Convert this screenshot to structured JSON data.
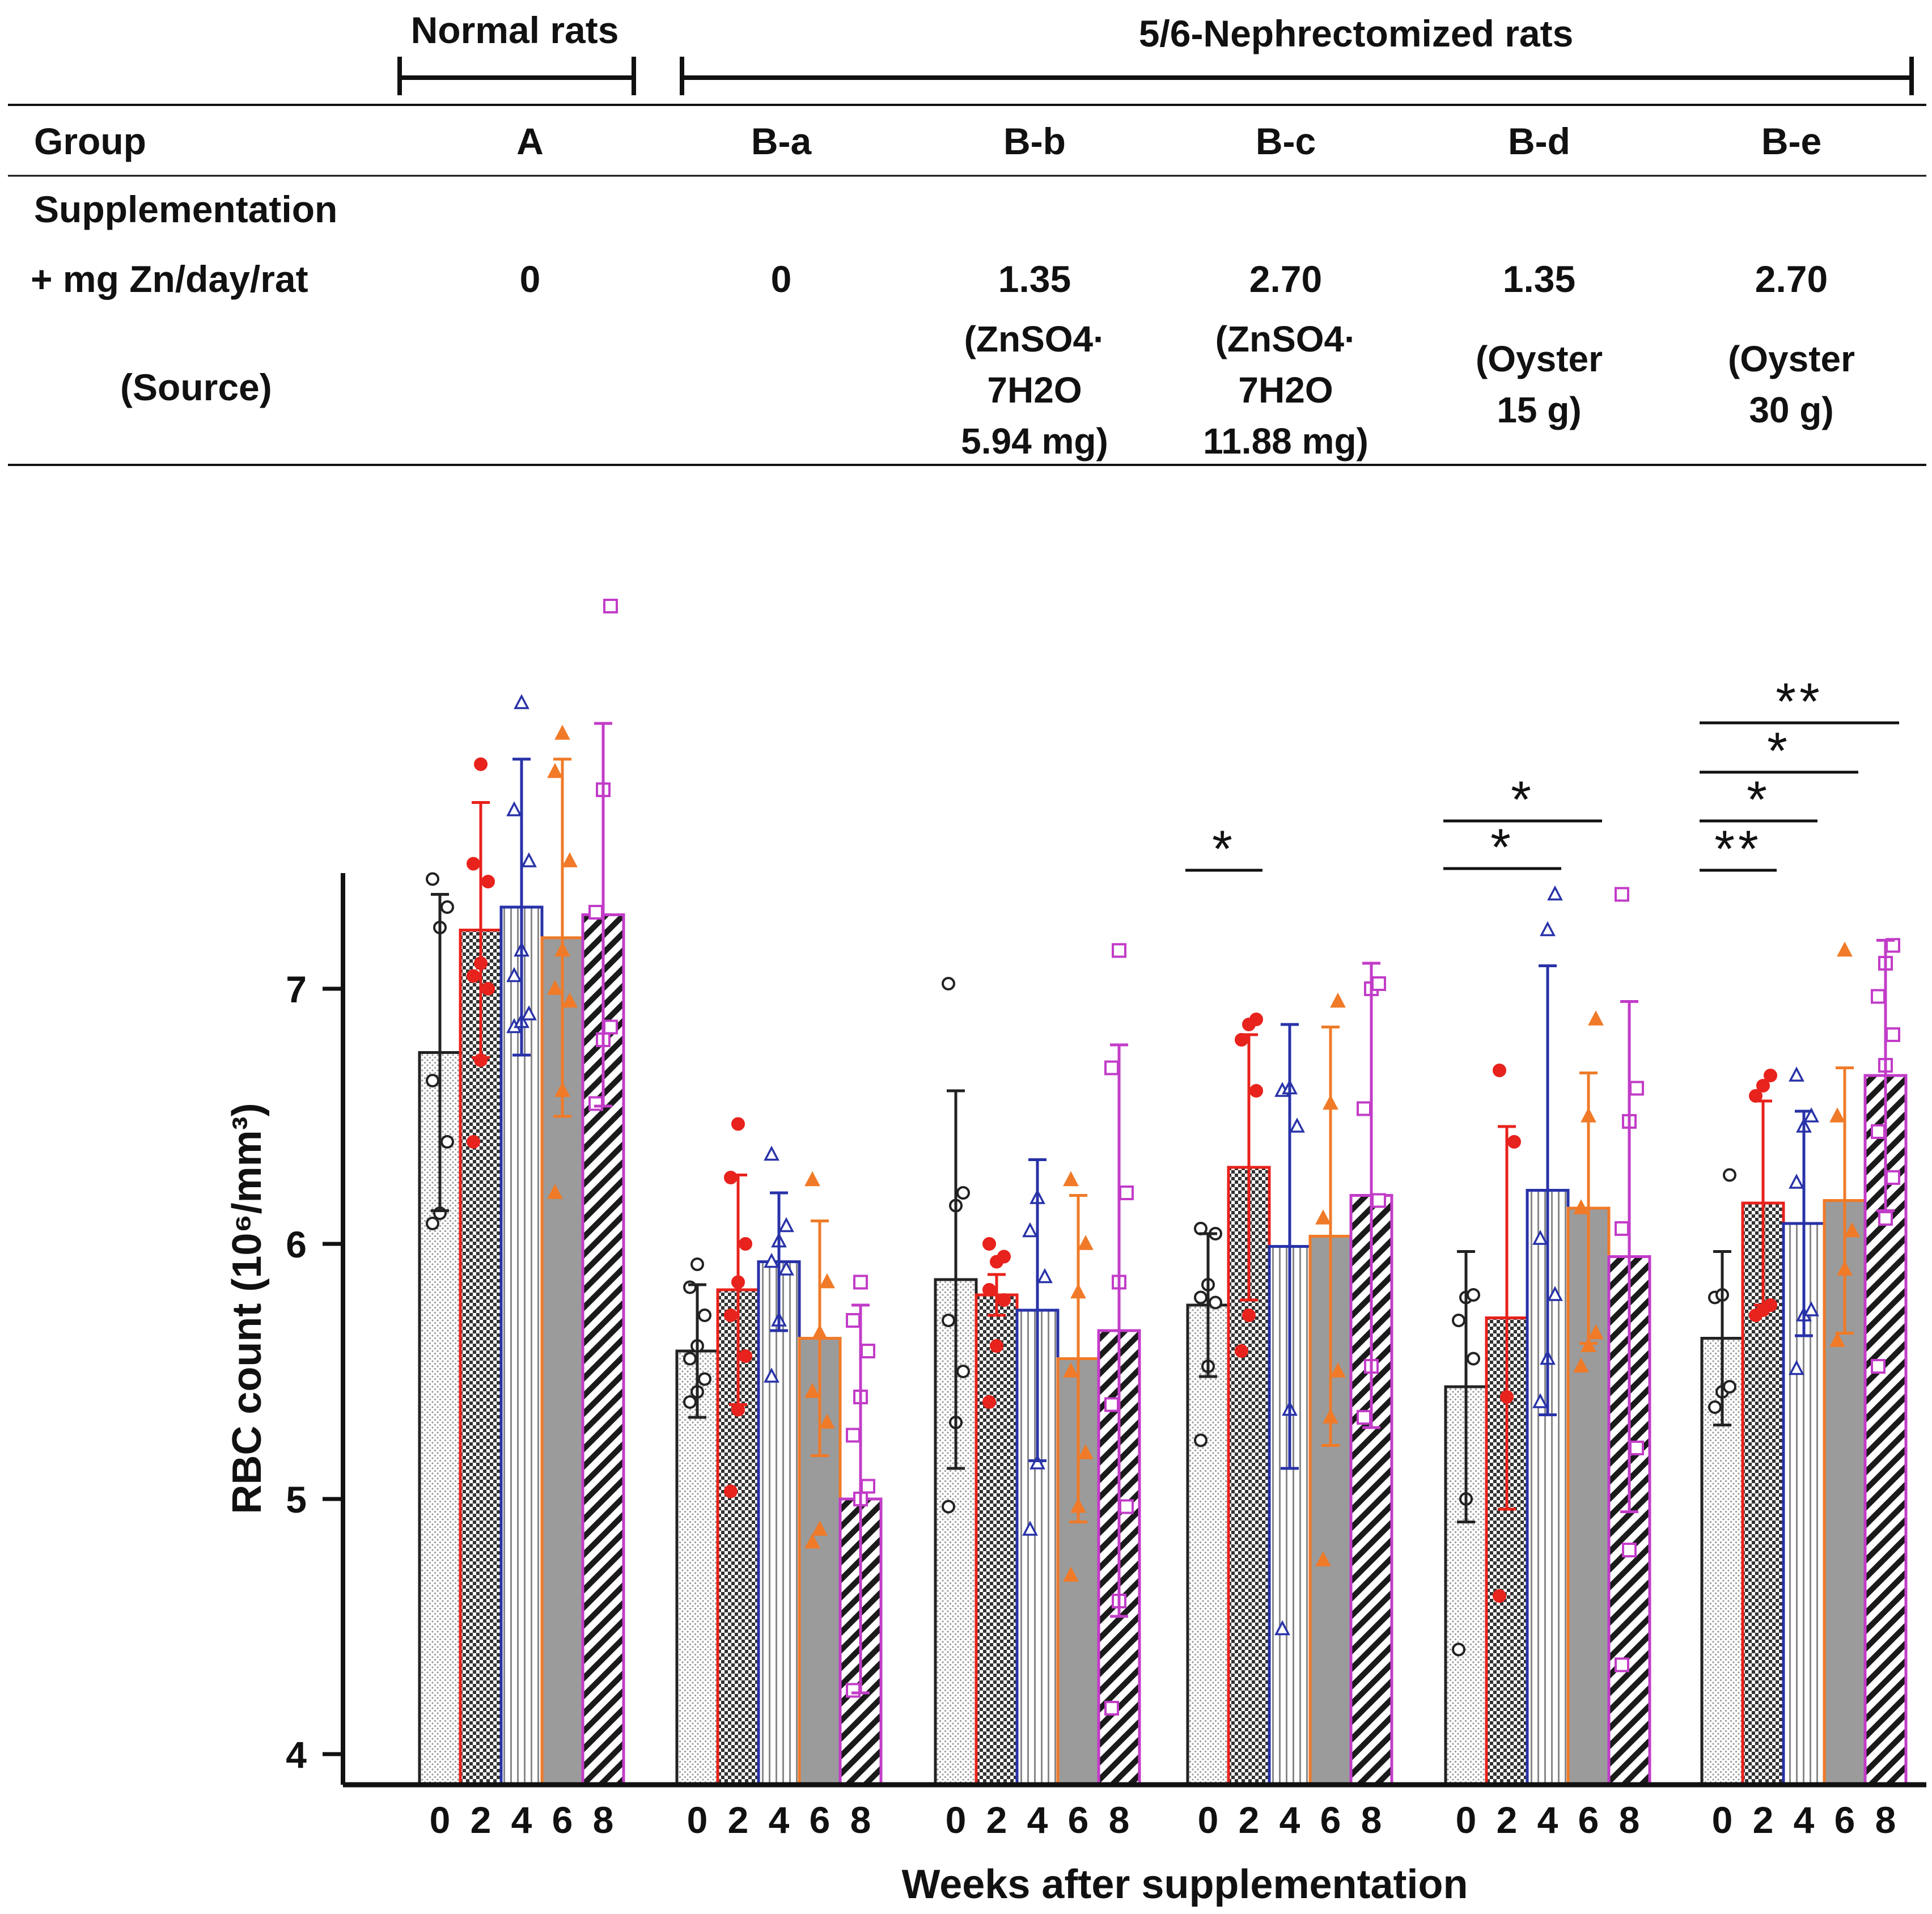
{
  "table": {
    "normal_label": "Normal rats",
    "nephrectomized_label": "5/6-Nephrectomized rats",
    "row_labels": {
      "group": "Group",
      "supplementation": "Supplementation",
      "dose": "+ mg Zn/day/rat",
      "source": "(Source)"
    },
    "groups": [
      {
        "id": "A",
        "dose": "0",
        "source": []
      },
      {
        "id": "B-a",
        "dose": "0",
        "source": []
      },
      {
        "id": "B-b",
        "dose": "1.35",
        "source": [
          "(ZnSO4·",
          "7H2O",
          "5.94 mg)"
        ]
      },
      {
        "id": "B-c",
        "dose": "2.70",
        "source": [
          "(ZnSO4·",
          "7H2O",
          "11.88 mg)"
        ]
      },
      {
        "id": "B-d",
        "dose": "1.35",
        "source": [
          "(Oyster",
          "15 g)"
        ]
      },
      {
        "id": "B-e",
        "dose": "2.70",
        "source": [
          "(Oyster",
          "30 g)"
        ]
      }
    ]
  },
  "chart_data": {
    "type": "bar",
    "title": "",
    "xlabel": "Weeks after supplementation",
    "ylabel": "RBC count (10⁶/mm³)",
    "ylim": [
      4,
      7.45
    ],
    "yticks": [
      "4",
      "5",
      "6",
      "7"
    ],
    "week_labels": [
      "0",
      "2",
      "4",
      "6",
      "8"
    ],
    "groups": [
      "A",
      "B-a",
      "B-b",
      "B-c",
      "B-d",
      "B-e"
    ],
    "series": [
      {
        "week": "0",
        "color": "#222222",
        "pattern": "dots",
        "values": [
          6.75,
          5.58,
          5.86,
          5.76,
          5.44,
          5.63
        ],
        "sd": [
          0.62,
          0.26,
          0.74,
          0.28,
          0.53,
          0.34
        ],
        "points": [
          [
            6.08,
            6.12,
            6.4,
            6.64,
            7.24,
            7.32,
            7.43
          ],
          [
            5.38,
            5.42,
            5.47,
            5.55,
            5.6,
            5.72,
            5.83,
            5.92
          ],
          [
            4.97,
            5.3,
            5.5,
            5.7,
            6.15,
            6.2,
            7.02
          ],
          [
            5.23,
            5.52,
            5.77,
            5.79,
            5.84,
            6.04,
            6.06
          ],
          [
            4.41,
            5.0,
            5.55,
            5.7,
            5.79,
            5.8
          ],
          [
            5.36,
            5.42,
            5.44,
            5.79,
            5.8,
            6.27
          ]
        ]
      },
      {
        "week": "2",
        "color": "#e8221c",
        "pattern": "checker",
        "values": [
          7.23,
          5.82,
          5.8,
          6.3,
          5.71,
          6.16
        ],
        "sd": [
          0.5,
          0.45,
          0.08,
          0.52,
          0.75,
          0.4
        ],
        "points": [
          [
            6.4,
            6.72,
            7.0,
            7.05,
            7.1,
            7.42,
            7.49,
            7.88
          ],
          [
            5.03,
            5.35,
            5.56,
            5.72,
            5.85,
            6.0,
            6.26,
            6.47
          ],
          [
            5.38,
            5.6,
            5.78,
            5.82,
            5.93,
            5.95,
            6.0
          ],
          [
            5.58,
            5.72,
            6.6,
            6.8,
            6.86,
            6.88
          ],
          [
            4.62,
            5.4,
            6.4,
            6.68
          ],
          [
            5.72,
            5.74,
            5.76,
            6.58,
            6.62,
            6.66
          ]
        ]
      },
      {
        "week": "4",
        "color": "#2832a8",
        "pattern": "vlines",
        "values": [
          7.32,
          5.93,
          5.74,
          5.99,
          6.21,
          6.08
        ],
        "sd": [
          0.58,
          0.27,
          0.59,
          0.87,
          0.88,
          0.44
        ],
        "points": [
          [
            6.85,
            6.87,
            6.9,
            7.05,
            7.15,
            7.5,
            7.7,
            8.12
          ],
          [
            5.48,
            5.7,
            5.9,
            5.93,
            6.01,
            6.07,
            6.35
          ],
          [
            4.88,
            5.14,
            5.87,
            6.05,
            6.18
          ],
          [
            4.49,
            5.35,
            6.46,
            6.6,
            6.61
          ],
          [
            5.38,
            5.55,
            5.8,
            6.02,
            7.23,
            7.37
          ],
          [
            5.51,
            5.72,
            5.74,
            6.24,
            6.46,
            6.5,
            6.66
          ]
        ]
      },
      {
        "week": "6",
        "color": "#f07a28",
        "pattern": "solid",
        "values": [
          7.2,
          5.63,
          5.55,
          6.03,
          6.14,
          6.17
        ],
        "sd": [
          0.7,
          0.46,
          0.64,
          0.82,
          0.53,
          0.52
        ],
        "points": [
          [
            6.2,
            6.6,
            6.95,
            7.0,
            7.15,
            7.5,
            7.85,
            8.0
          ],
          [
            4.83,
            4.88,
            5.3,
            5.42,
            5.65,
            5.85,
            6.25
          ],
          [
            4.7,
            4.97,
            5.18,
            5.5,
            5.81,
            6.0,
            6.25
          ],
          [
            4.76,
            5.32,
            5.5,
            6.1,
            6.55,
            6.95
          ],
          [
            5.52,
            5.6,
            5.65,
            6.14,
            6.5,
            6.88
          ],
          [
            5.62,
            5.9,
            6.05,
            6.5,
            7.15
          ]
        ]
      },
      {
        "week": "8",
        "color": "#c23cc8",
        "pattern": "diag",
        "values": [
          7.29,
          5.0,
          5.66,
          6.19,
          5.95,
          6.66
        ],
        "sd": [
          0.75,
          0.76,
          1.12,
          0.91,
          1.0,
          0.53
        ],
        "points": [
          [
            6.55,
            6.8,
            6.85,
            7.3,
            7.78,
            8.5
          ],
          [
            4.25,
            5.0,
            5.05,
            5.25,
            5.4,
            5.58,
            5.7,
            5.85
          ],
          [
            4.18,
            4.6,
            4.97,
            5.37,
            5.85,
            6.2,
            6.69,
            7.15
          ],
          [
            5.32,
            5.52,
            6.17,
            6.53,
            7.0,
            7.02
          ],
          [
            4.35,
            4.8,
            5.2,
            6.06,
            6.48,
            6.61,
            7.37
          ],
          [
            5.52,
            6.1,
            6.26,
            6.44,
            6.7,
            6.82,
            6.97,
            7.1,
            7.17
          ]
        ]
      }
    ],
    "significance": [
      {
        "group": "B-c",
        "from": "0",
        "to": "2",
        "label": "*"
      },
      {
        "group": "B-d",
        "from": "0",
        "to": "4",
        "label": "*"
      },
      {
        "group": "B-d",
        "from": "0",
        "to": "6",
        "label": "*"
      },
      {
        "group": "B-e",
        "from": "0",
        "to": "2",
        "label": "**"
      },
      {
        "group": "B-e",
        "from": "0",
        "to": "4",
        "label": "*"
      },
      {
        "group": "B-e",
        "from": "0",
        "to": "6",
        "label": "*"
      },
      {
        "group": "B-e",
        "from": "0",
        "to": "8",
        "label": "**"
      }
    ]
  }
}
